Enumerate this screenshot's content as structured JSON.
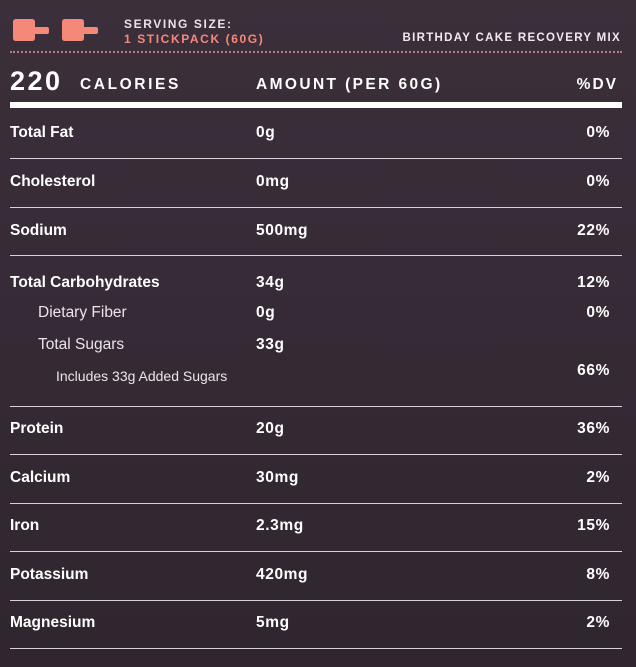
{
  "header": {
    "serving_label": "SERVING SIZE:",
    "serving_value": "1 STICKPACK (60G)",
    "product_name": "BIRTHDAY CAKE RECOVERY MIX",
    "scoop_icons": [
      "scoop-icon",
      "scoop-icon"
    ],
    "colors": {
      "accent": "#f4897a",
      "background": "#382c37",
      "text": "#ffffff"
    }
  },
  "facts_header": {
    "calories_value": "220",
    "calories_label": "CALORIES",
    "amount_label": "AMOUNT (PER 60G)",
    "dv_label": "%DV"
  },
  "nutrients": [
    {
      "name": "Total Fat",
      "amount": "0g",
      "dv": "0%"
    },
    {
      "name": "Cholesterol",
      "amount": "0mg",
      "dv": "0%"
    },
    {
      "name": "Sodium",
      "amount": "500mg",
      "dv": "22%"
    },
    {
      "name": "Total Carbohydrates",
      "amount": "34g",
      "dv": "12%"
    },
    {
      "name": "Dietary Fiber",
      "amount": "0g",
      "dv": "0%"
    },
    {
      "name": "Total Sugars",
      "amount": "33g",
      "dv": ""
    },
    {
      "name": "Includes 33g Added Sugars",
      "amount": "",
      "dv": "66%"
    },
    {
      "name": "Protein",
      "amount": "20g",
      "dv": "36%"
    },
    {
      "name": "Calcium",
      "amount": "30mg",
      "dv": "2%"
    },
    {
      "name": "Iron",
      "amount": "2.3mg",
      "dv": "15%"
    },
    {
      "name": "Potassium",
      "amount": "420mg",
      "dv": "8%"
    },
    {
      "name": "Magnesium",
      "amount": "5mg",
      "dv": "2%"
    }
  ]
}
